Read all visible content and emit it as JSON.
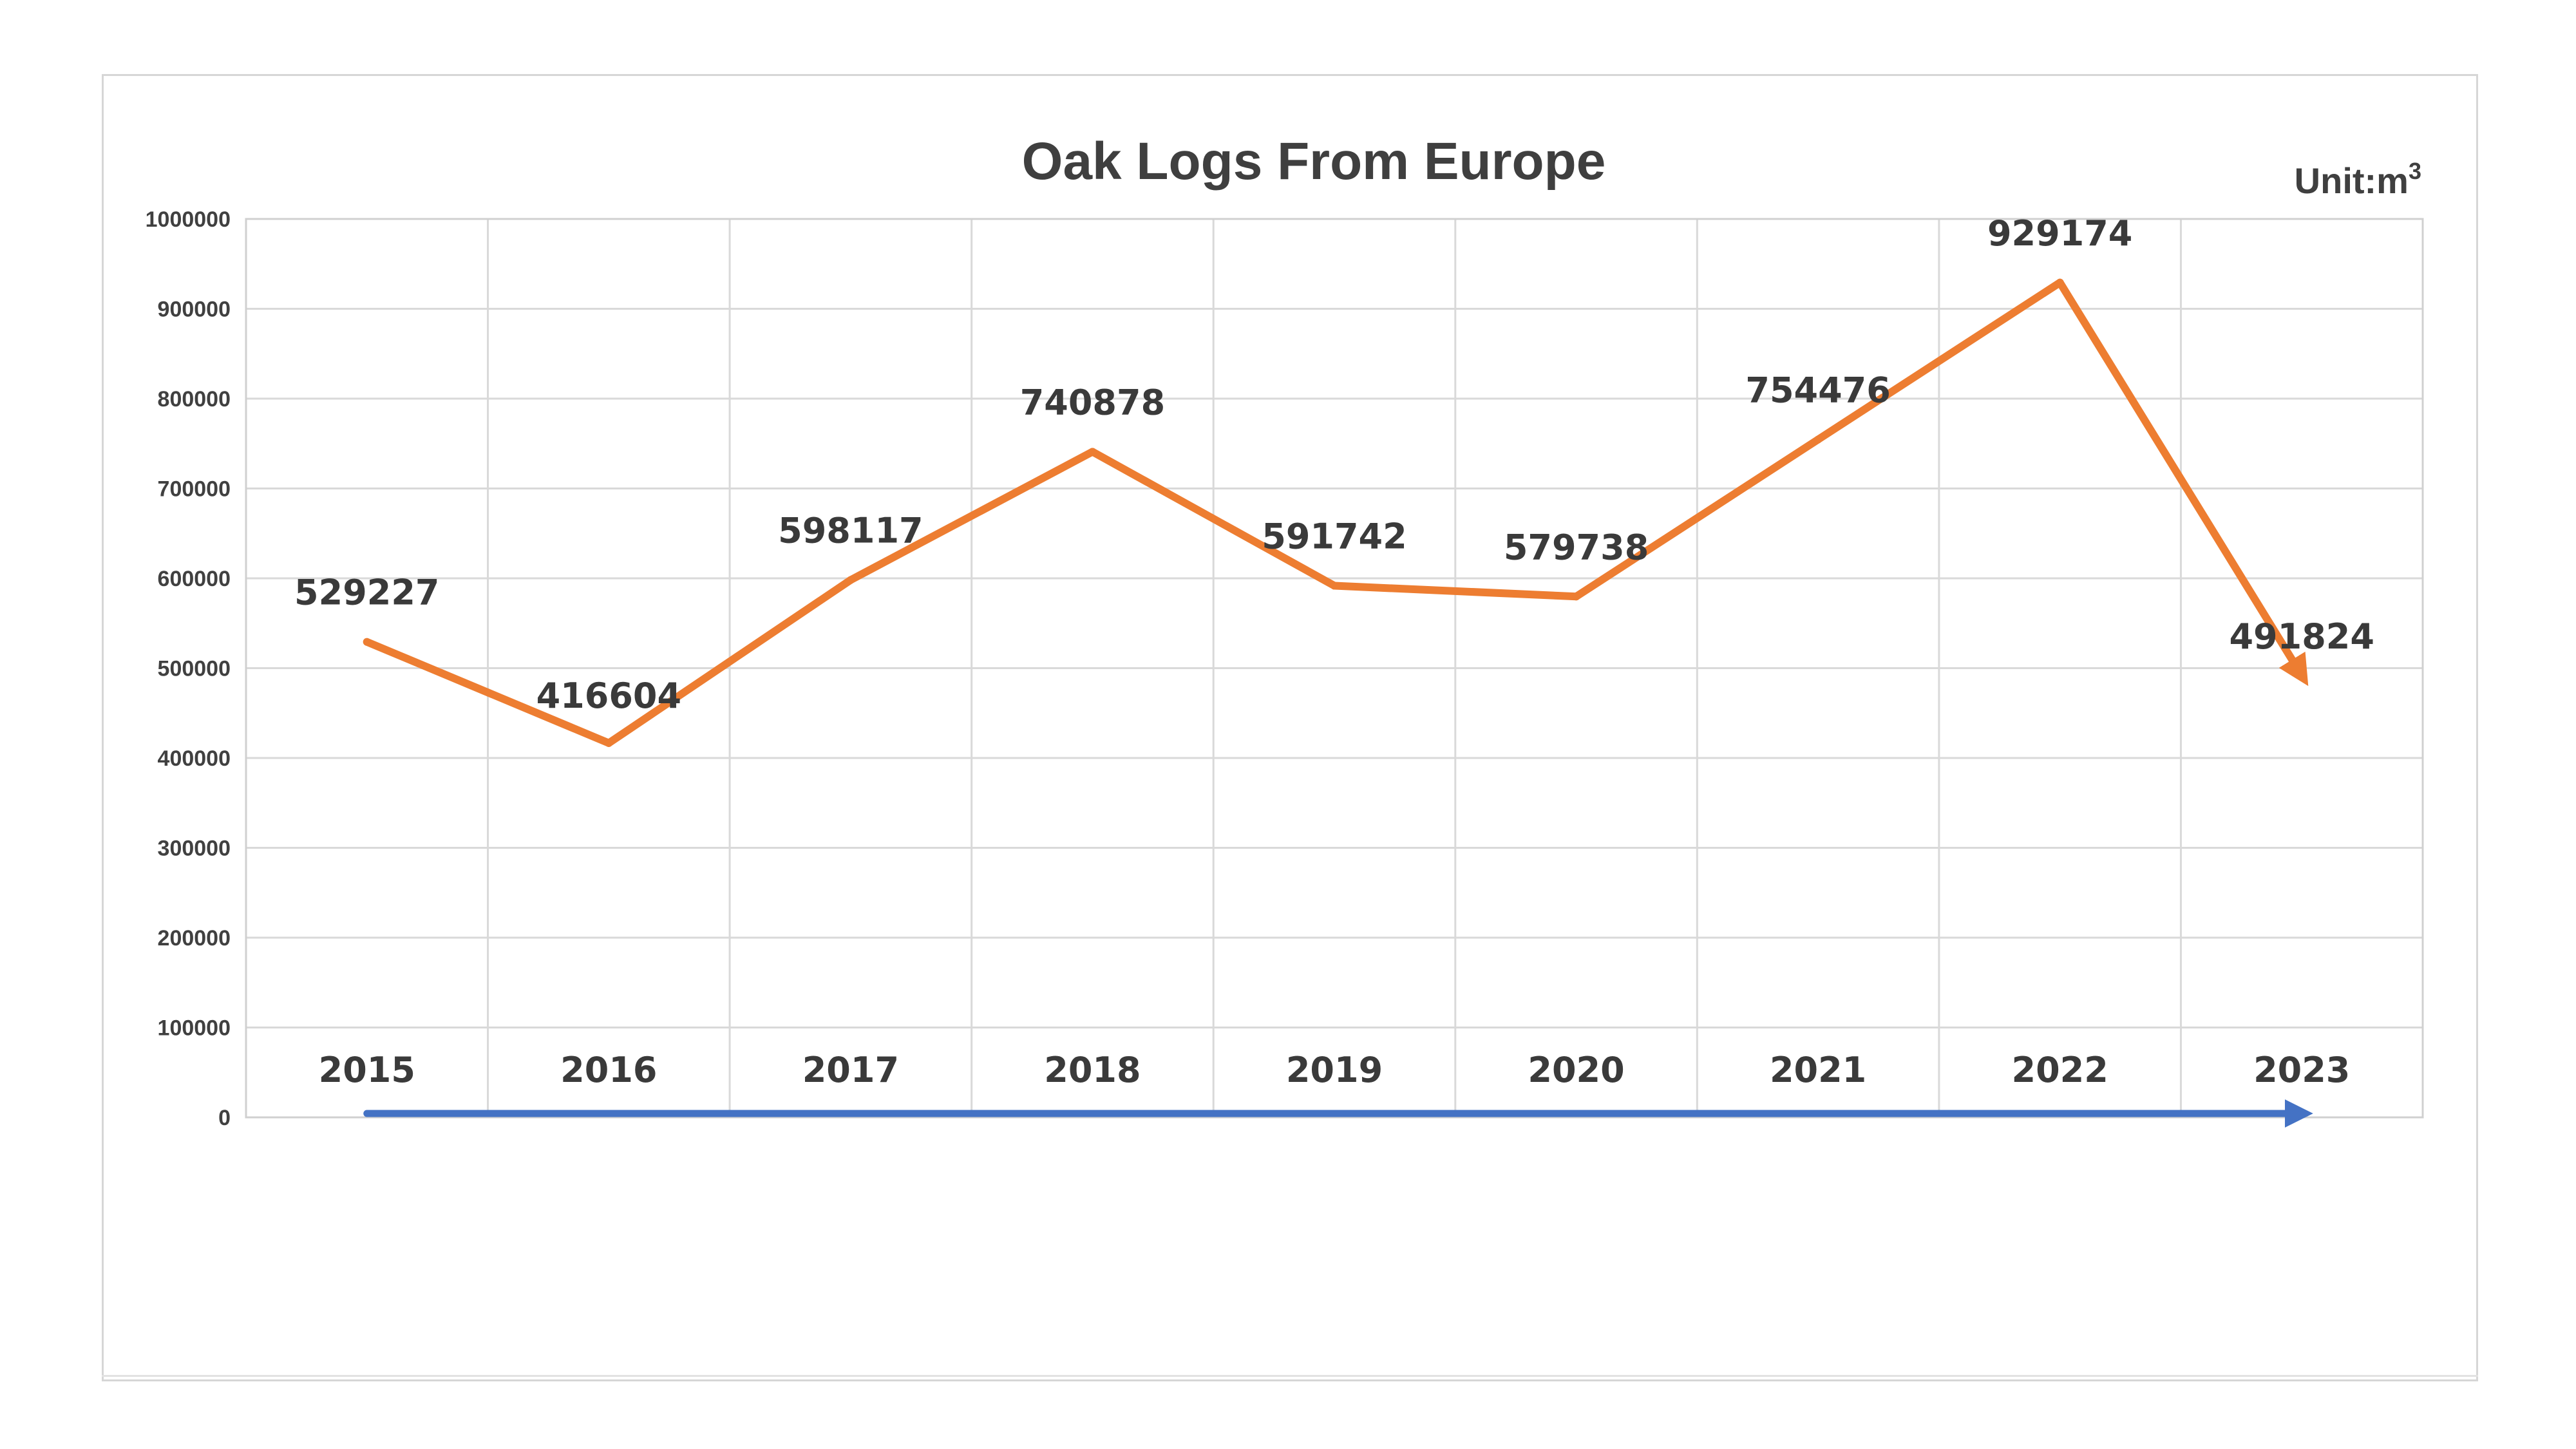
{
  "chart_data": {
    "type": "line",
    "title": "Oak Logs From Europe",
    "unit": {
      "prefix": "Unit:m",
      "sup": "3"
    },
    "categories": [
      "2015",
      "2016",
      "2017",
      "2018",
      "2019",
      "2020",
      "2021",
      "2022",
      "2023"
    ],
    "series": [
      {
        "values": [
          529227,
          416604,
          598117,
          740878,
          591742,
          579738,
          754476,
          929174,
          491824
        ],
        "color": "#ED7D31"
      }
    ],
    "data_labels": [
      "529227",
      "416604",
      "598117",
      "740878",
      "591742",
      "579738",
      "754476",
      "929174",
      "491824"
    ],
    "y_ticks": [
      "0",
      "100000",
      "200000",
      "300000",
      "400000",
      "500000",
      "600000",
      "700000",
      "800000",
      "900000",
      "1000000"
    ],
    "ylim": [
      0,
      1000000
    ],
    "grid": true,
    "baseline_arrow_color": "#4472C4",
    "gridline_color": "#d9d9d9"
  }
}
